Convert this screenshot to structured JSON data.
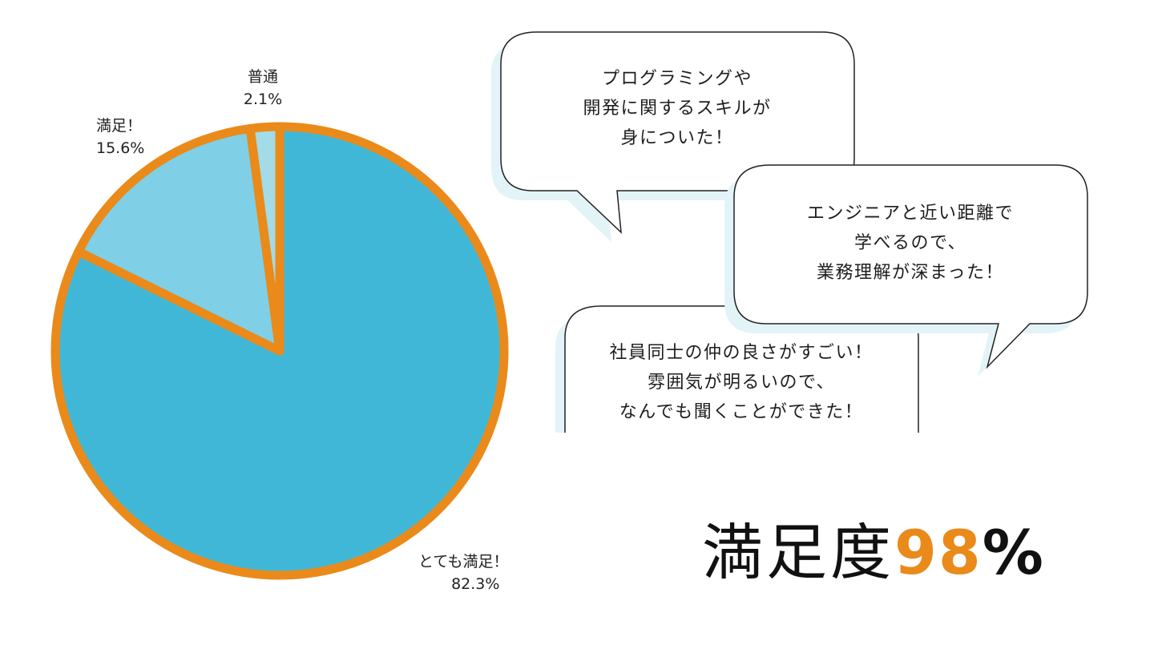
{
  "chart_data": {
    "type": "pie",
    "slices": [
      {
        "label": "とても満足！",
        "value": 82.3,
        "value_label": "82.3%"
      },
      {
        "label": "満足！",
        "value": 15.6,
        "value_label": "15.6%"
      },
      {
        "label": "普通",
        "value": 2.1,
        "value_label": "2.1%"
      }
    ],
    "colors": [
      "#41b7d7",
      "#7fcfe6",
      "#a3dbe6"
    ],
    "border_color": "#ea8a1a",
    "start": "top",
    "direction": "clockwise"
  },
  "bubbles": [
    {
      "lines": [
        "プログラミングや",
        "開発に関するスキルが",
        "身についた！"
      ]
    },
    {
      "lines": [
        "エンジニアと近い距離で",
        "学べるので、",
        "業務理解が深まった！"
      ]
    },
    {
      "lines": [
        "社員同士の仲の良さがすごい！",
        "雰囲気が明るいので、",
        "なんでも聞くことができた！"
      ]
    }
  ],
  "headline": {
    "prefix": "満足度",
    "number": "98",
    "unit": "%",
    "accent_color": "#ea8a1a"
  }
}
